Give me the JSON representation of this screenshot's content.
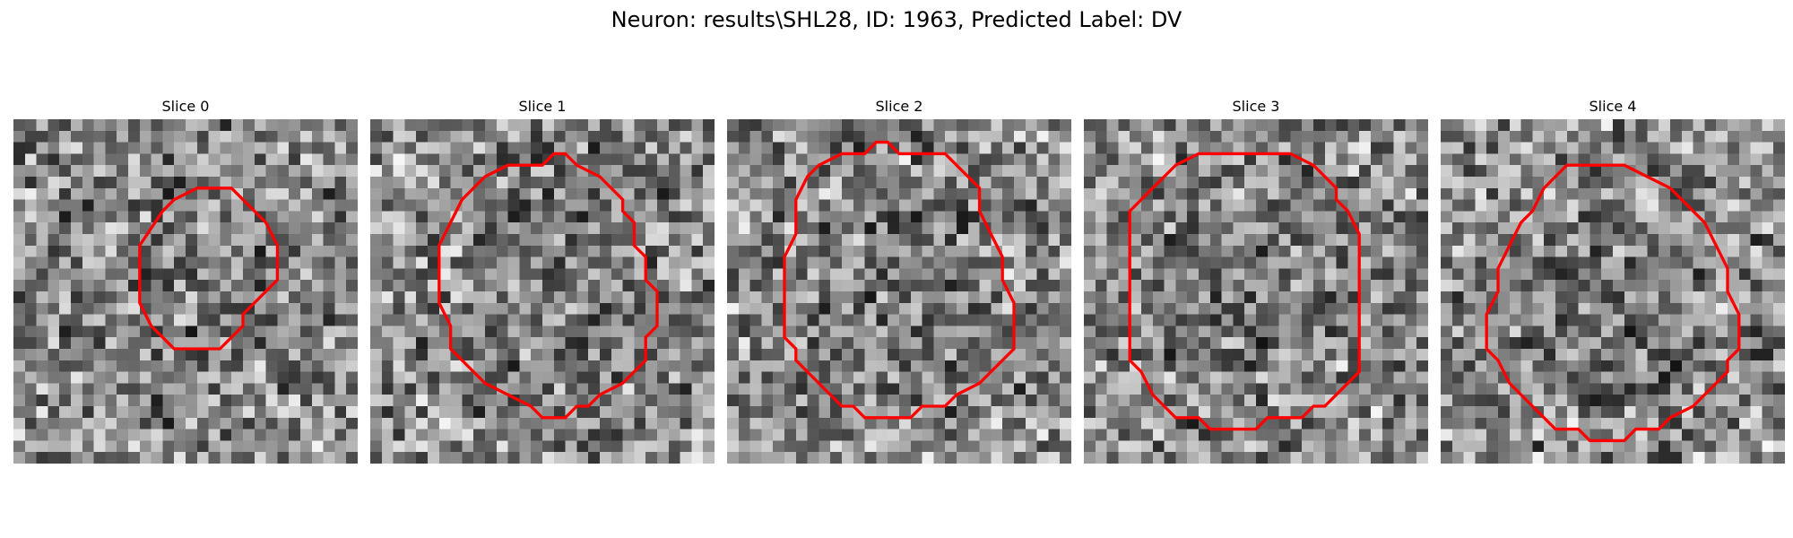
{
  "figure": {
    "title": "Neuron: results\\SHL28, ID: 1963, Predicted Label: DV"
  },
  "panels": [
    {
      "title": "Slice 0",
      "seed": 11,
      "contour": [
        [
          16,
          6
        ],
        [
          19,
          6
        ],
        [
          22,
          9
        ],
        [
          23,
          11
        ],
        [
          23,
          14
        ],
        [
          20,
          17
        ],
        [
          20,
          18
        ],
        [
          18,
          20
        ],
        [
          14,
          20
        ],
        [
          12,
          18
        ],
        [
          11,
          16
        ],
        [
          11,
          11
        ],
        [
          13,
          8
        ],
        [
          14,
          7
        ]
      ]
    },
    {
      "title": "Slice 1",
      "seed": 23,
      "contour": [
        [
          16,
          3
        ],
        [
          17,
          3
        ],
        [
          18,
          4
        ],
        [
          20,
          5
        ],
        [
          22,
          7
        ],
        [
          22,
          8
        ],
        [
          23,
          9
        ],
        [
          23,
          11
        ],
        [
          24,
          12
        ],
        [
          24,
          14
        ],
        [
          25,
          15
        ],
        [
          25,
          18
        ],
        [
          24,
          19
        ],
        [
          24,
          21
        ],
        [
          23,
          22
        ],
        [
          22,
          23
        ],
        [
          20,
          24
        ],
        [
          19,
          25
        ],
        [
          18,
          25
        ],
        [
          17,
          26
        ],
        [
          15,
          26
        ],
        [
          14,
          25
        ],
        [
          12,
          24
        ],
        [
          10,
          23
        ],
        [
          8,
          21
        ],
        [
          7,
          20
        ],
        [
          7,
          18
        ],
        [
          6,
          16
        ],
        [
          6,
          11
        ],
        [
          7,
          9
        ],
        [
          8,
          7
        ],
        [
          10,
          5
        ],
        [
          12,
          4
        ],
        [
          15,
          4
        ]
      ]
    },
    {
      "title": "Slice 2",
      "seed": 37,
      "contour": [
        [
          13,
          2
        ],
        [
          14,
          2
        ],
        [
          15,
          3
        ],
        [
          19,
          3
        ],
        [
          21,
          5
        ],
        [
          22,
          6
        ],
        [
          22,
          8
        ],
        [
          23,
          10
        ],
        [
          24,
          12
        ],
        [
          24,
          14
        ],
        [
          25,
          16
        ],
        [
          25,
          20
        ],
        [
          24,
          21
        ],
        [
          23,
          22
        ],
        [
          22,
          23
        ],
        [
          20,
          24
        ],
        [
          19,
          25
        ],
        [
          17,
          25
        ],
        [
          16,
          26
        ],
        [
          12,
          26
        ],
        [
          11,
          25
        ],
        [
          10,
          25
        ],
        [
          8,
          23
        ],
        [
          7,
          22
        ],
        [
          6,
          21
        ],
        [
          6,
          20
        ],
        [
          5,
          19
        ],
        [
          5,
          12
        ],
        [
          6,
          10
        ],
        [
          6,
          7
        ],
        [
          7,
          5
        ],
        [
          8,
          4
        ],
        [
          10,
          3
        ],
        [
          12,
          3
        ]
      ]
    },
    {
      "title": "Slice 3",
      "seed": 53,
      "contour": [
        [
          10,
          3
        ],
        [
          18,
          3
        ],
        [
          20,
          4
        ],
        [
          21,
          5
        ],
        [
          22,
          6
        ],
        [
          22,
          7
        ],
        [
          23,
          8
        ],
        [
          24,
          10
        ],
        [
          24,
          22
        ],
        [
          22,
          24
        ],
        [
          21,
          25
        ],
        [
          20,
          25
        ],
        [
          19,
          26
        ],
        [
          16,
          26
        ],
        [
          15,
          27
        ],
        [
          11,
          27
        ],
        [
          10,
          26
        ],
        [
          8,
          26
        ],
        [
          6,
          24
        ],
        [
          5,
          22
        ],
        [
          4,
          21
        ],
        [
          4,
          8
        ],
        [
          5,
          7
        ],
        [
          6,
          6
        ],
        [
          8,
          4
        ]
      ]
    },
    {
      "title": "Slice 4",
      "seed": 71,
      "contour": [
        [
          11,
          4
        ],
        [
          16,
          4
        ],
        [
          18,
          5
        ],
        [
          20,
          6
        ],
        [
          21,
          7
        ],
        [
          22,
          8
        ],
        [
          23,
          9
        ],
        [
          24,
          11
        ],
        [
          25,
          13
        ],
        [
          25,
          15
        ],
        [
          26,
          17
        ],
        [
          26,
          20
        ],
        [
          25,
          21
        ],
        [
          25,
          22
        ],
        [
          24,
          23
        ],
        [
          23,
          24
        ],
        [
          22,
          25
        ],
        [
          20,
          26
        ],
        [
          19,
          27
        ],
        [
          17,
          27
        ],
        [
          16,
          28
        ],
        [
          13,
          28
        ],
        [
          12,
          27
        ],
        [
          10,
          27
        ],
        [
          8,
          25
        ],
        [
          7,
          24
        ],
        [
          6,
          23
        ],
        [
          5,
          21
        ],
        [
          4,
          20
        ],
        [
          4,
          17
        ],
        [
          5,
          15
        ],
        [
          5,
          13
        ],
        [
          6,
          11
        ],
        [
          7,
          9
        ],
        [
          8,
          8
        ],
        [
          9,
          6
        ],
        [
          10,
          5
        ]
      ]
    }
  ],
  "colors": {
    "contour": "#ff0000",
    "background": "#ffffff"
  },
  "grid_size": 30
}
